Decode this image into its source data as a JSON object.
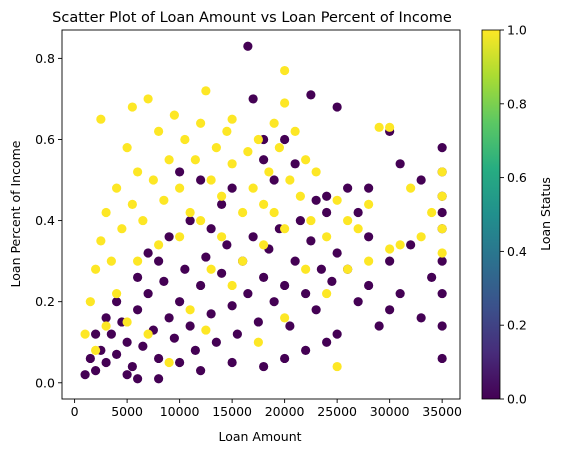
{
  "chart_data": {
    "type": "scatter",
    "title": "Scatter Plot of Loan Amount vs Loan Percent of Income",
    "xlabel": "Loan Amount",
    "ylabel": "Loan Percent of Income",
    "xlim": [
      -1200,
      36700
    ],
    "ylim": [
      -0.04,
      0.87
    ],
    "xticks": [
      0,
      5000,
      10000,
      15000,
      20000,
      25000,
      30000,
      35000
    ],
    "xtick_labels": [
      "0",
      "5000",
      "10000",
      "15000",
      "20000",
      "25000",
      "30000",
      "35000"
    ],
    "yticks": [
      0.0,
      0.2,
      0.4,
      0.6,
      0.8
    ],
    "ytick_labels": [
      "0.0",
      "0.2",
      "0.4",
      "0.6",
      "0.8"
    ],
    "grid": false,
    "legend": "none",
    "colorbar": {
      "label": "Loan Status",
      "range": [
        0.0,
        1.0
      ],
      "ticks": [
        0.0,
        0.2,
        0.4,
        0.6,
        0.8,
        1.0
      ],
      "tick_labels": [
        "0.0",
        "0.2",
        "0.4",
        "0.6",
        "0.8",
        "1.0"
      ],
      "colormap": "viridis",
      "colormap_stops": [
        "#440154",
        "#472c7a",
        "#3b518b",
        "#2c718e",
        "#21908d",
        "#27ad81",
        "#5cc863",
        "#aadc32",
        "#fde725"
      ]
    },
    "colors": {
      "status_0": "#440154",
      "status_1": "#fde725"
    },
    "series": [
      {
        "status": 0,
        "points": [
          [
            1000,
            0.02
          ],
          [
            1500,
            0.06
          ],
          [
            2000,
            0.03
          ],
          [
            2500,
            0.08
          ],
          [
            3000,
            0.05
          ],
          [
            3500,
            0.12
          ],
          [
            4000,
            0.07
          ],
          [
            4500,
            0.15
          ],
          [
            5000,
            0.1
          ],
          [
            5500,
            0.04
          ],
          [
            6000,
            0.18
          ],
          [
            6500,
            0.09
          ],
          [
            7000,
            0.22
          ],
          [
            7500,
            0.13
          ],
          [
            8000,
            0.06
          ],
          [
            8500,
            0.25
          ],
          [
            9000,
            0.16
          ],
          [
            9500,
            0.11
          ],
          [
            10000,
            0.2
          ],
          [
            10500,
            0.28
          ],
          [
            11000,
            0.14
          ],
          [
            11500,
            0.08
          ],
          [
            12000,
            0.24
          ],
          [
            12500,
            0.31
          ],
          [
            13000,
            0.17
          ],
          [
            13500,
            0.1
          ],
          [
            14000,
            0.27
          ],
          [
            14500,
            0.34
          ],
          [
            15000,
            0.19
          ],
          [
            15500,
            0.12
          ],
          [
            16000,
            0.3
          ],
          [
            16500,
            0.22
          ],
          [
            17000,
            0.36
          ],
          [
            17500,
            0.15
          ],
          [
            18000,
            0.26
          ],
          [
            18500,
            0.33
          ],
          [
            19000,
            0.2
          ],
          [
            19500,
            0.38
          ],
          [
            20000,
            0.24
          ],
          [
            20500,
            0.14
          ],
          [
            21000,
            0.3
          ],
          [
            21500,
            0.4
          ],
          [
            22000,
            0.22
          ],
          [
            22500,
            0.35
          ],
          [
            23000,
            0.18
          ],
          [
            23500,
            0.28
          ],
          [
            24000,
            0.42
          ],
          [
            24500,
            0.25
          ],
          [
            25000,
            0.32
          ],
          [
            25000,
            0.12
          ],
          [
            26000,
            0.28
          ],
          [
            27000,
            0.2
          ],
          [
            28000,
            0.24
          ],
          [
            28000,
            0.36
          ],
          [
            29000,
            0.14
          ],
          [
            30000,
            0.3
          ],
          [
            30000,
            0.18
          ],
          [
            31000,
            0.22
          ],
          [
            32000,
            0.34
          ],
          [
            33000,
            0.16
          ],
          [
            34000,
            0.26
          ],
          [
            35000,
            0.06
          ],
          [
            35000,
            0.14
          ],
          [
            35000,
            0.22
          ],
          [
            35000,
            0.3
          ],
          [
            35000,
            0.38
          ],
          [
            35000,
            0.46
          ],
          [
            35000,
            0.58
          ],
          [
            35000,
            0.52
          ],
          [
            35000,
            0.42
          ],
          [
            10000,
            0.52
          ],
          [
            12000,
            0.5
          ],
          [
            15000,
            0.48
          ],
          [
            16500,
            0.83
          ],
          [
            18000,
            0.6
          ],
          [
            18000,
            0.55
          ],
          [
            19000,
            0.5
          ],
          [
            22500,
            0.71
          ],
          [
            25000,
            0.68
          ],
          [
            21000,
            0.54
          ],
          [
            24000,
            0.46
          ],
          [
            17000,
            0.7
          ],
          [
            20000,
            0.6
          ],
          [
            23000,
            0.45
          ],
          [
            26000,
            0.48
          ],
          [
            28000,
            0.48
          ],
          [
            31000,
            0.54
          ],
          [
            33000,
            0.5
          ],
          [
            30000,
            0.62
          ],
          [
            27000,
            0.42
          ],
          [
            2000,
            0.12
          ],
          [
            3000,
            0.16
          ],
          [
            4000,
            0.2
          ],
          [
            6000,
            0.26
          ],
          [
            7000,
            0.32
          ],
          [
            8000,
            0.3
          ],
          [
            9000,
            0.36
          ],
          [
            11000,
            0.4
          ],
          [
            13000,
            0.38
          ],
          [
            14000,
            0.44
          ],
          [
            5000,
            0.02
          ],
          [
            8000,
            0.01
          ],
          [
            12000,
            0.03
          ],
          [
            15000,
            0.05
          ],
          [
            18000,
            0.04
          ],
          [
            20000,
            0.06
          ],
          [
            22000,
            0.08
          ],
          [
            24000,
            0.1
          ],
          [
            10000,
            0.05
          ],
          [
            6000,
            0.01
          ]
        ]
      },
      {
        "status": 1,
        "points": [
          [
            1000,
            0.12
          ],
          [
            1500,
            0.2
          ],
          [
            2000,
            0.28
          ],
          [
            2500,
            0.35
          ],
          [
            2500,
            0.65
          ],
          [
            3000,
            0.42
          ],
          [
            3500,
            0.3
          ],
          [
            4000,
            0.48
          ],
          [
            4500,
            0.38
          ],
          [
            5000,
            0.58
          ],
          [
            5500,
            0.44
          ],
          [
            5500,
            0.68
          ],
          [
            6000,
            0.52
          ],
          [
            6500,
            0.4
          ],
          [
            7000,
            0.7
          ],
          [
            7500,
            0.5
          ],
          [
            8000,
            0.62
          ],
          [
            8500,
            0.45
          ],
          [
            9000,
            0.55
          ],
          [
            9500,
            0.66
          ],
          [
            10000,
            0.48
          ],
          [
            10500,
            0.6
          ],
          [
            11000,
            0.42
          ],
          [
            11500,
            0.55
          ],
          [
            12000,
            0.64
          ],
          [
            12500,
            0.72
          ],
          [
            13000,
            0.5
          ],
          [
            13500,
            0.58
          ],
          [
            14000,
            0.46
          ],
          [
            14500,
            0.62
          ],
          [
            15000,
            0.54
          ],
          [
            15000,
            0.65
          ],
          [
            16000,
            0.42
          ],
          [
            16500,
            0.57
          ],
          [
            17000,
            0.48
          ],
          [
            17500,
            0.6
          ],
          [
            18000,
            0.44
          ],
          [
            18500,
            0.52
          ],
          [
            19000,
            0.64
          ],
          [
            19500,
            0.58
          ],
          [
            20000,
            0.77
          ],
          [
            20000,
            0.69
          ],
          [
            20500,
            0.5
          ],
          [
            21000,
            0.62
          ],
          [
            21500,
            0.46
          ],
          [
            22000,
            0.55
          ],
          [
            22500,
            0.4
          ],
          [
            23000,
            0.52
          ],
          [
            24000,
            0.36
          ],
          [
            25000,
            0.45
          ],
          [
            26000,
            0.4
          ],
          [
            27000,
            0.38
          ],
          [
            28000,
            0.44
          ],
          [
            29000,
            0.63
          ],
          [
            30000,
            0.63
          ],
          [
            31000,
            0.34
          ],
          [
            32000,
            0.48
          ],
          [
            33000,
            0.36
          ],
          [
            34000,
            0.42
          ],
          [
            35000,
            0.46
          ],
          [
            35000,
            0.52
          ],
          [
            35000,
            0.38
          ],
          [
            35000,
            0.32
          ],
          [
            2000,
            0.08
          ],
          [
            3000,
            0.14
          ],
          [
            4000,
            0.22
          ],
          [
            6000,
            0.3
          ],
          [
            8000,
            0.34
          ],
          [
            10000,
            0.36
          ],
          [
            12000,
            0.4
          ],
          [
            14000,
            0.36
          ],
          [
            16000,
            0.3
          ],
          [
            18000,
            0.34
          ],
          [
            20000,
            0.38
          ],
          [
            22000,
            0.28
          ],
          [
            24000,
            0.22
          ],
          [
            25000,
            0.04
          ],
          [
            26000,
            0.28
          ],
          [
            28000,
            0.3
          ],
          [
            30000,
            0.33
          ],
          [
            11000,
            0.18
          ],
          [
            12500,
            0.13
          ],
          [
            15000,
            0.24
          ],
          [
            17500,
            0.1
          ],
          [
            20000,
            0.16
          ],
          [
            9000,
            0.05
          ],
          [
            7000,
            0.12
          ],
          [
            5000,
            0.15
          ],
          [
            13000,
            0.28
          ],
          [
            19000,
            0.42
          ]
        ]
      }
    ]
  }
}
